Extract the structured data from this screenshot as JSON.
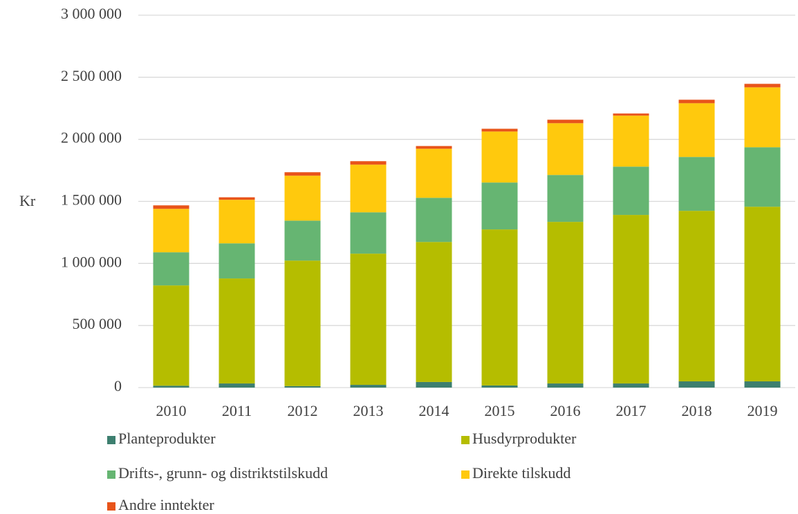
{
  "chart_data": {
    "type": "stacked_bar",
    "y_label": "Kr",
    "categories": [
      "2010",
      "2011",
      "2012",
      "2013",
      "2014",
      "2015",
      "2016",
      "2017",
      "2018",
      "2019"
    ],
    "series": [
      {
        "name": "Planteprodukter",
        "color": "#3d7f6f",
        "values": [
          15000,
          33000,
          12000,
          22000,
          45000,
          17000,
          33000,
          33000,
          50000,
          50000
        ]
      },
      {
        "name": "Husdyrprodukter",
        "color": "#b5bd00",
        "values": [
          808000,
          846000,
          1011000,
          1057000,
          1128000,
          1257000,
          1302000,
          1358000,
          1374000,
          1407000
        ]
      },
      {
        "name": "Drifts-, grunn- og distriktstilskudd",
        "color": "#66b572",
        "values": [
          267000,
          283000,
          322000,
          333000,
          356000,
          378000,
          378000,
          389000,
          434000,
          479000
        ]
      },
      {
        "name": "Direkte tilskudd",
        "color": "#ffc90d",
        "values": [
          350000,
          351000,
          362000,
          384000,
          395000,
          411000,
          417000,
          411000,
          433000,
          483000
        ]
      },
      {
        "name": "Andre inntekter",
        "color": "#e8541a",
        "values": [
          28000,
          20000,
          28000,
          28000,
          22000,
          22000,
          28000,
          17000,
          28000,
          28000
        ]
      }
    ],
    "ylim": [
      0,
      3000000
    ],
    "yticks": [
      0,
      {
        "value": 500000,
        "label": "500 000"
      },
      {
        "value": 1000000,
        "label": "1 000 000"
      },
      {
        "value": 1500000,
        "label": "1 500 000"
      },
      {
        "value": 2000000,
        "label": "2 000 000"
      },
      {
        "value": 2500000,
        "label": "2 500 000"
      },
      {
        "value": 3000000,
        "label": "3 000 000"
      }
    ],
    "grid": true
  }
}
